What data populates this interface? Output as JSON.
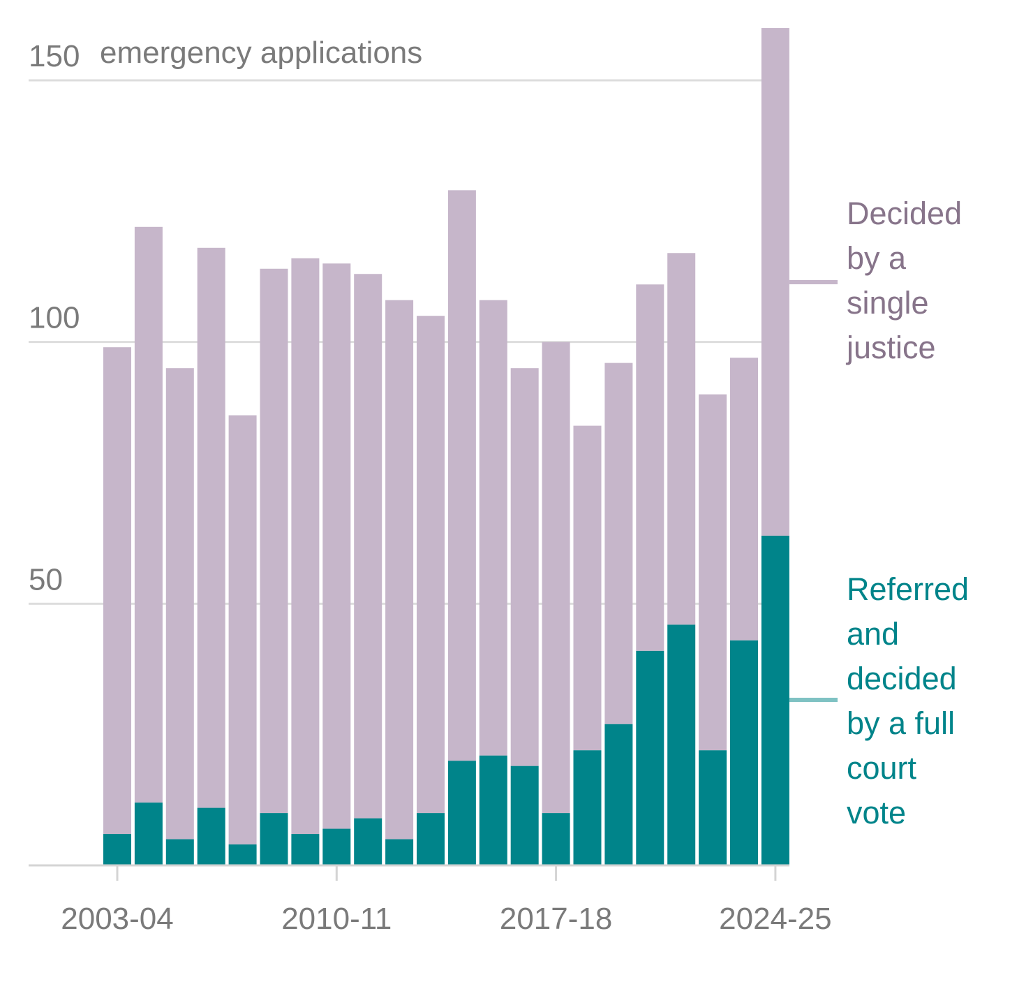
{
  "chart_data": {
    "type": "bar",
    "stacked": true,
    "unit_label": "emergency applications",
    "title": "",
    "xlabel": "",
    "ylabel": "",
    "ylim": [
      0,
      150
    ],
    "y_ticks": [
      50,
      100,
      150
    ],
    "x_tick_labels": [
      "2003-04",
      "2010-11",
      "2017-18",
      "2024-25"
    ],
    "categories": [
      "2003-04",
      "2004-05",
      "2005-06",
      "2006-07",
      "2007-08",
      "2008-09",
      "2009-10",
      "2010-11",
      "2011-12",
      "2012-13",
      "2013-14",
      "2014-15",
      "2015-16",
      "2016-17",
      "2017-18",
      "2018-19",
      "2019-20",
      "2020-21",
      "2021-22",
      "2022-23",
      "2023-24",
      "2024-25"
    ],
    "grid": true,
    "series": [
      {
        "name": "Referred and decided by a full court vote",
        "color": "#00848a",
        "values": [
          6,
          12,
          5,
          11,
          4,
          10,
          6,
          7,
          9,
          5,
          10,
          20,
          21,
          19,
          10,
          22,
          27,
          41,
          46,
          22,
          43,
          63
        ]
      },
      {
        "name": "Decided by a single justice",
        "color": "#c6b6ca",
        "values": [
          93,
          110,
          90,
          107,
          82,
          104,
          110,
          108,
          104,
          103,
          95,
          109,
          87,
          76,
          90,
          62,
          69,
          70,
          71,
          68,
          54,
          97
        ]
      }
    ]
  },
  "legend": {
    "single_justice": {
      "lines": [
        "Decided",
        "by a",
        "single",
        "justice"
      ],
      "color": "#87748a",
      "swatch": "#c6b6ca"
    },
    "full_court": {
      "lines": [
        "Referred",
        "and",
        "decided",
        "by a full",
        "court",
        "vote"
      ],
      "color": "#00848a",
      "swatch": "#7fc2c3"
    }
  }
}
